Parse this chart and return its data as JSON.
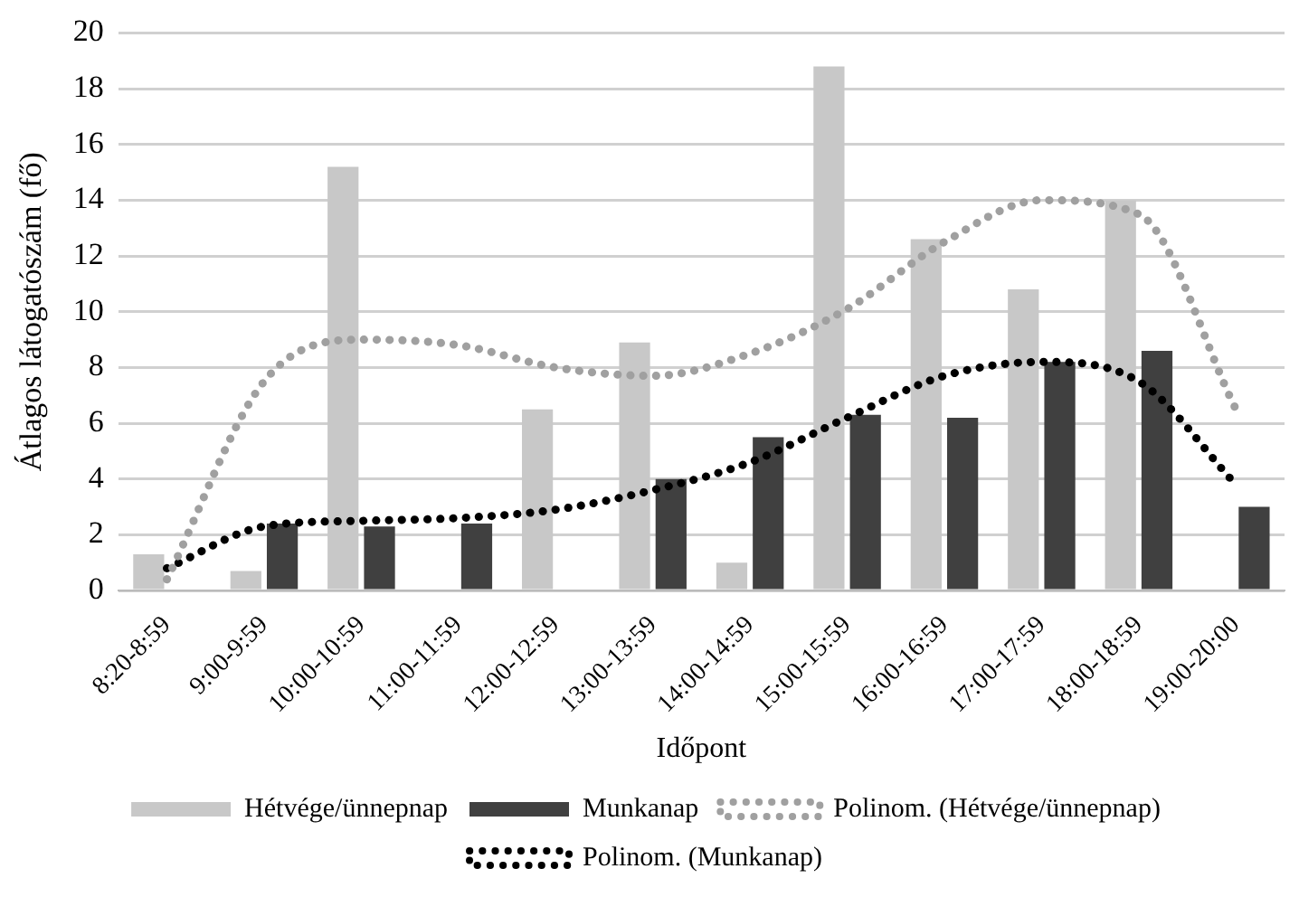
{
  "chart_data": {
    "type": "bar",
    "xlabel": "Időpont",
    "ylabel": "Átlagos látogatószám (fő)",
    "categories": [
      "8:20-8:59",
      "9:00-9:59",
      "10:00-10:59",
      "11:00-11:59",
      "12:00-12:59",
      "13:00-13:59",
      "14:00-14:59",
      "15:00-15:59",
      "16:00-16:59",
      "17:00-17:59",
      "18:00-18:59",
      "19:00-20:00"
    ],
    "series": [
      {
        "name": "Hétvége/ünnepnap",
        "color": "#c8c8c8",
        "values": [
          1.3,
          0.7,
          15.2,
          null,
          6.5,
          8.9,
          1.0,
          18.8,
          12.6,
          10.8,
          14.0,
          null
        ]
      },
      {
        "name": "Munkanap",
        "color": "#404040",
        "values": [
          null,
          2.4,
          2.3,
          2.4,
          null,
          4.0,
          5.5,
          6.3,
          6.2,
          8.2,
          8.6,
          3.0
        ]
      },
      {
        "name": "Polinom. (Hétvége/ünnepnap)",
        "type": "line",
        "line_style": "dotted",
        "color": "#a0a0a0",
        "values": [
          0.4,
          7.5,
          9.0,
          8.8,
          8.0,
          7.7,
          8.5,
          10.1,
          12.5,
          14.0,
          13.5,
          6.5
        ]
      },
      {
        "name": "Polinom. (Munkanap)",
        "type": "line",
        "line_style": "dotted",
        "color": "#000000",
        "values": [
          0.8,
          2.3,
          2.5,
          2.6,
          2.9,
          3.6,
          4.6,
          6.2,
          7.7,
          8.2,
          7.5,
          3.8
        ]
      }
    ],
    "ylim": [
      0,
      20
    ],
    "yticks": [
      0,
      2,
      4,
      6,
      8,
      10,
      12,
      14,
      16,
      18,
      20
    ],
    "grid": "y",
    "legend": "bottom",
    "marker": "none"
  }
}
